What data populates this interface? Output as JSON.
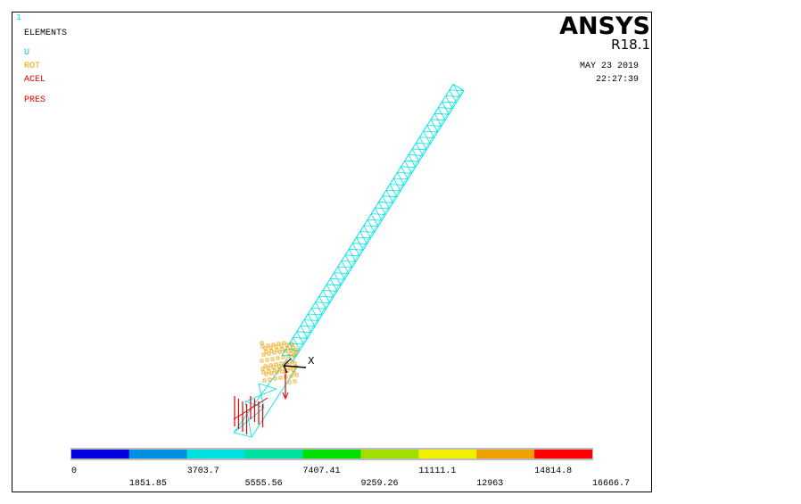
{
  "window": {
    "number": "1"
  },
  "legend": {
    "title": "ELEMENTS",
    "items": [
      "U",
      "ROT",
      "ACEL",
      "PRES"
    ]
  },
  "header": {
    "product": "ANSYS",
    "release": "R18.1",
    "date": "MAY 23 2019",
    "time": "22:27:39"
  },
  "axis": {
    "label": "X"
  },
  "colorbar": {
    "labels": [
      "0",
      "1851.85",
      "3703.7",
      "5555.56",
      "7407.41",
      "9259.26",
      "11111.1",
      "12963",
      "14814.8",
      "16666.7"
    ]
  }
}
